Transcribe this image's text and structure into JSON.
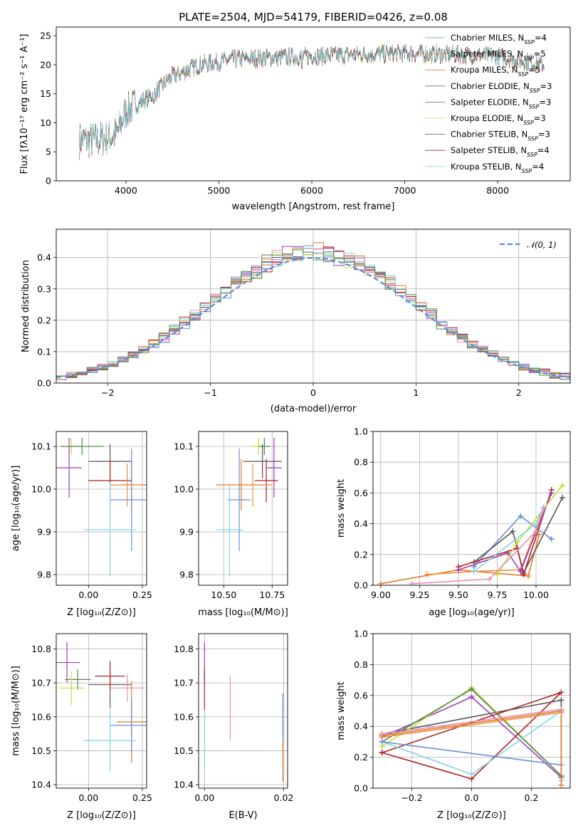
{
  "figure_title": "PLATE=2504, MJD=54179, FIBERID=0426, z=0.08",
  "colors": {
    "Chabrier MILES": "#6a8fd8",
    "Salpeter MILES": "#f28c3a",
    "Kroupa MILES": "#e07b28",
    "Chabrier ELODIE": "#4f8a4f",
    "Salpeter ELODIE": "#9b3fb5",
    "Kroupa ELODIE": "#c6d93a",
    "Chabrier STELIB": "#555555",
    "Salpeter STELIB": "#b22222",
    "Kroupa STELIB": "#7fd6e3",
    "pink": "#e890b8",
    "gaussian": "#5b8dd6"
  },
  "chart_data": [
    {
      "id": "spectrum",
      "type": "line",
      "title": "PLATE=2504, MJD=54179, FIBERID=0426, z=0.08",
      "xlabel": "wavelength [Angstrom, rest frame]",
      "ylabel": "Flux [f_λ 10^-17 erg cm^-2 s^-1 A^-1]",
      "xlim": [
        3250,
        8780
      ],
      "ylim": [
        0,
        26.5
      ],
      "xticks": [
        4000,
        5000,
        6000,
        7000,
        8000
      ],
      "yticks": [
        0,
        5,
        10,
        15,
        20,
        25
      ],
      "grid": false,
      "legend_position": "right",
      "series": [
        {
          "name": "Chabrier MILES",
          "nssp": "4"
        },
        {
          "name": "Salpeter MILES",
          "nssp": "5"
        },
        {
          "name": "Kroupa MILES",
          "nssp": "5"
        },
        {
          "name": "Chabrier ELODIE",
          "nssp": "3"
        },
        {
          "name": "Salpeter ELODIE",
          "nssp": "3"
        },
        {
          "name": "Kroupa ELODIE",
          "nssp": "3"
        },
        {
          "name": "Chabrier STELIB",
          "nssp": "3"
        },
        {
          "name": "Salpeter STELIB",
          "nssp": "4"
        },
        {
          "name": "Kroupa STELIB",
          "nssp": "4"
        }
      ],
      "continuum_anchors": [
        [
          3500,
          7
        ],
        [
          3700,
          7
        ],
        [
          3900,
          8
        ],
        [
          4000,
          12
        ],
        [
          4300,
          15
        ],
        [
          4500,
          18
        ],
        [
          4800,
          20
        ],
        [
          5200,
          21
        ],
        [
          6000,
          21.5
        ],
        [
          7000,
          22
        ],
        [
          8000,
          21.5
        ],
        [
          8500,
          20
        ]
      ]
    },
    {
      "id": "residuals",
      "type": "line",
      "xlabel": "(data-model)/error",
      "ylabel": "Normed distribution",
      "xlim": [
        -2.5,
        2.5
      ],
      "ylim": [
        0,
        0.49
      ],
      "xticks": [
        -2,
        -1,
        0,
        1,
        2
      ],
      "yticks": [
        0.0,
        0.1,
        0.2,
        0.3,
        0.4
      ],
      "grid": true,
      "legend": "𝒩(0, 1)",
      "legend_position": "upper right"
    },
    {
      "id": "age_vs_Z",
      "type": "scatter",
      "xlabel": "Z [log10(Z/Z⊙)]",
      "ylabel": "age [log10(age/yr)]",
      "xlim": [
        -0.15,
        0.27
      ],
      "ylim": [
        9.775,
        10.135
      ],
      "xticks": [
        0.0,
        0.25
      ],
      "yticks": [
        9.8,
        9.9,
        10.0,
        10.1
      ],
      "grid": true,
      "points": [
        {
          "series": "Kroupa ELODIE",
          "x": -0.08,
          "xerr": 0.05,
          "y": 10.1,
          "yerr": 0.02
        },
        {
          "series": "Chabrier ELODIE",
          "x": -0.03,
          "xerr": 0.1,
          "y": 10.1,
          "yerr": 0.02
        },
        {
          "series": "Salpeter ELODIE",
          "x": -0.09,
          "xerr": 0.06,
          "y": 10.05,
          "yerr": 0.07
        },
        {
          "series": "Chabrier STELIB",
          "x": 0.1,
          "xerr": 0.1,
          "y": 10.065,
          "yerr": 0.04
        },
        {
          "series": "Salpeter STELIB",
          "x": 0.1,
          "xerr": 0.1,
          "y": 10.02,
          "yerr": 0.05
        },
        {
          "series": "Kroupa MILES",
          "x": 0.2,
          "xerr": 0.07,
          "y": 10.01,
          "yerr": 0.06
        },
        {
          "series": "Salpeter MILES",
          "x": 0.18,
          "xerr": 0.08,
          "y": 10.01,
          "yerr": 0.05
        },
        {
          "series": "Chabrier MILES",
          "x": 0.2,
          "xerr": 0.1,
          "y": 9.975,
          "yerr": 0.12
        },
        {
          "series": "Kroupa STELIB",
          "x": 0.1,
          "xerr": 0.12,
          "y": 9.905,
          "yerr": 0.11
        }
      ]
    },
    {
      "id": "age_vs_mass",
      "type": "scatter",
      "xlabel": "mass [log10(M/M⊙)]",
      "ylabel": "",
      "xlim": [
        10.37,
        10.83
      ],
      "ylim": [
        9.775,
        10.135
      ],
      "xticks": [
        10.5,
        10.75
      ],
      "yticks": [
        9.8,
        9.9,
        10.0,
        10.1
      ],
      "grid": true,
      "points": [
        {
          "series": "Kroupa ELODIE",
          "x": 10.68,
          "xerr": 0.04,
          "y": 10.1,
          "yerr": 0.02
        },
        {
          "series": "Chabrier ELODIE",
          "x": 10.71,
          "xerr": 0.03,
          "y": 10.1,
          "yerr": 0.02
        },
        {
          "series": "Salpeter ELODIE",
          "x": 10.76,
          "xerr": 0.04,
          "y": 10.05,
          "yerr": 0.07
        },
        {
          "series": "Chabrier STELIB",
          "x": 10.7,
          "xerr": 0.1,
          "y": 10.065,
          "yerr": 0.04
        },
        {
          "series": "Salpeter STELIB",
          "x": 10.72,
          "xerr": 0.06,
          "y": 10.02,
          "yerr": 0.05
        },
        {
          "series": "Kroupa MILES",
          "x": 10.59,
          "xerr": 0.13,
          "y": 10.01,
          "yerr": 0.06
        },
        {
          "series": "Salpeter MILES",
          "x": 10.65,
          "xerr": 0.1,
          "y": 10.01,
          "yerr": 0.05
        },
        {
          "series": "Chabrier MILES",
          "x": 10.58,
          "xerr": 0.06,
          "y": 9.975,
          "yerr": 0.12
        },
        {
          "series": "Kroupa STELIB",
          "x": 10.53,
          "xerr": 0.07,
          "y": 9.905,
          "yerr": 0.11
        }
      ]
    },
    {
      "id": "weight_vs_age",
      "type": "line",
      "xlabel": "age [log10(age/yr)]",
      "ylabel": "mass weight",
      "xlim": [
        8.95,
        10.22
      ],
      "ylim": [
        0,
        1.0
      ],
      "xticks": [
        9.0,
        9.25,
        9.5,
        9.75,
        10.0
      ],
      "yticks": [
        0.0,
        0.2,
        0.4,
        0.6,
        0.8,
        1.0
      ],
      "grid": true,
      "series": [
        {
          "name": "Kroupa MILES",
          "x": [
            9.0,
            9.5,
            9.95,
            10.02
          ],
          "y": [
            0.01,
            0.1,
            0.06,
            0.33
          ]
        },
        {
          "name": "Salpeter MILES",
          "x": [
            9.3,
            9.6,
            9.9,
            10.05
          ],
          "y": [
            0.07,
            0.09,
            0.1,
            0.5
          ]
        },
        {
          "name": "Chabrier MILES",
          "x": [
            9.6,
            9.9,
            10.1
          ],
          "y": [
            0.12,
            0.45,
            0.3
          ]
        },
        {
          "name": "Chabrier STELIB",
          "x": [
            9.6,
            9.85,
            9.92,
            10.17
          ],
          "y": [
            0.15,
            0.35,
            0.08,
            0.57
          ]
        },
        {
          "name": "Salpeter STELIB",
          "x": [
            9.5,
            9.88,
            9.92,
            10.1
          ],
          "y": [
            0.12,
            0.24,
            0.07,
            0.62
          ]
        },
        {
          "name": "Salpeter ELODIE",
          "x": [
            9.5,
            9.82,
            9.9,
            10.1
          ],
          "y": [
            0.1,
            0.21,
            0.09,
            0.6
          ]
        },
        {
          "name": "Kroupa ELODIE",
          "x": [
            9.75,
            9.88,
            10.17
          ],
          "y": [
            0.07,
            0.28,
            0.65
          ]
        },
        {
          "name": "Kroupa STELIB",
          "x": [
            9.6,
            10.0,
            10.05
          ],
          "y": [
            0.09,
            0.4,
            0.51
          ]
        },
        {
          "name": "pink",
          "x": [
            9.2,
            9.7,
            10.0,
            10.05
          ],
          "y": [
            0.01,
            0.04,
            0.35,
            0.5
          ]
        }
      ]
    },
    {
      "id": "mass_vs_Z",
      "type": "scatter",
      "xlabel": "Z [log10(Z/Z⊙)]",
      "ylabel": "mass [log10(M/M⊙)]",
      "xlim": [
        -0.15,
        0.27
      ],
      "ylim": [
        10.39,
        10.845
      ],
      "xticks": [
        0.0,
        0.25
      ],
      "yticks": [
        10.4,
        10.5,
        10.6,
        10.7,
        10.8
      ],
      "grid": true,
      "points": [
        {
          "series": "Salpeter ELODIE",
          "x": -0.1,
          "xerr": 0.06,
          "y": 10.76,
          "yerr": 0.06
        },
        {
          "series": "Chabrier ELODIE",
          "x": -0.05,
          "xerr": 0.06,
          "y": 10.71,
          "yerr": 0.03
        },
        {
          "series": "Kroupa ELODIE",
          "x": -0.08,
          "xerr": 0.06,
          "y": 10.685,
          "yerr": 0.05
        },
        {
          "series": "Chabrier STELIB",
          "x": 0.1,
          "xerr": 0.1,
          "y": 10.695,
          "yerr": 0.07
        },
        {
          "series": "Salpeter STELIB",
          "x": 0.1,
          "xerr": 0.07,
          "y": 10.72,
          "yerr": 0.04
        },
        {
          "series": "pink",
          "x": 0.18,
          "xerr": 0.08,
          "y": 10.685,
          "yerr": 0.04
        },
        {
          "series": "Kroupa MILES",
          "x": 0.2,
          "xerr": 0.07,
          "y": 10.585,
          "yerr": 0.12
        },
        {
          "series": "Chabrier MILES",
          "x": 0.2,
          "xerr": 0.1,
          "y": 10.575,
          "yerr": 0.08
        },
        {
          "series": "Kroupa STELIB",
          "x": 0.1,
          "xerr": 0.12,
          "y": 10.53,
          "yerr": 0.09
        }
      ]
    },
    {
      "id": "mass_vs_ebv",
      "type": "scatter",
      "xlabel": "E(B-V)",
      "ylabel": "",
      "xlim": [
        -0.0015,
        0.021
      ],
      "ylim": [
        10.39,
        10.845
      ],
      "xticks": [
        0.0,
        0.02
      ],
      "yticks": [
        10.4,
        10.5,
        10.6,
        10.7,
        10.8
      ],
      "grid": true,
      "points": [
        {
          "series": "Salpeter ELODIE",
          "x": 0.0,
          "y": 10.76,
          "yerr": 0.06
        },
        {
          "series": "Salpeter STELIB",
          "x": 0.0,
          "y": 10.68,
          "yerr": 0.06
        },
        {
          "series": "Kroupa STELIB",
          "x": 0.0,
          "y": 10.53,
          "yerr": 0.08
        },
        {
          "series": "pink",
          "x": 0.0065,
          "y": 10.625,
          "yerr": 0.095
        },
        {
          "series": "Chabrier MILES",
          "x": 0.0198,
          "y": 10.6,
          "yerr": 0.07
        },
        {
          "series": "Kroupa MILES",
          "x": 0.0198,
          "y": 10.47,
          "yerr": 0.06
        }
      ]
    },
    {
      "id": "weight_vs_Z",
      "type": "line",
      "xlabel": "Z [log10(Z/Z⊙)]",
      "ylabel": "mass weight",
      "xlim": [
        -0.33,
        0.33
      ],
      "ylim": [
        0,
        1.0
      ],
      "xticks": [
        -0.2,
        0.0,
        0.2
      ],
      "yticks": [
        0.0,
        0.2,
        0.4,
        0.6,
        0.8,
        1.0
      ],
      "grid": true,
      "series": [
        {
          "name": "Chabrier STELIB",
          "x": [
            -0.3,
            0.3,
            0.3
          ],
          "y": [
            0.35,
            0.57,
            0.08
          ]
        },
        {
          "name": "Salpeter ELODIE",
          "x": [
            -0.3,
            0.0,
            0.3
          ],
          "y": [
            0.33,
            0.59,
            0.07
          ]
        },
        {
          "name": "Kroupa ELODIE",
          "x": [
            -0.3,
            0.0,
            0.3
          ],
          "y": [
            0.27,
            0.65,
            0.08
          ]
        },
        {
          "name": "Chabrier ELODIE",
          "x": [
            -0.3,
            0.0,
            0.3
          ],
          "y": [
            0.3,
            0.64,
            0.08
          ]
        },
        {
          "name": "Salpeter STELIB",
          "x": [
            -0.3,
            0.0,
            0.3,
            -0.3
          ],
          "y": [
            0.23,
            0.06,
            0.62,
            0.23
          ]
        },
        {
          "name": "Kroupa STELIB",
          "x": [
            -0.3,
            0.0,
            0.3,
            0.3
          ],
          "y": [
            0.3,
            0.09,
            0.5,
            0.05
          ]
        },
        {
          "name": "Chabrier MILES",
          "x": [
            -0.3,
            0.3
          ],
          "y": [
            0.3,
            0.15
          ]
        },
        {
          "name": "Kroupa MILES",
          "x": [
            -0.3,
            0.3,
            0.3
          ],
          "y": [
            0.34,
            0.5,
            0.02
          ]
        },
        {
          "name": "Salpeter MILES",
          "x": [
            -0.3,
            0.3
          ],
          "y": [
            0.33,
            0.49
          ]
        },
        {
          "name": "pink",
          "x": [
            -0.3,
            0.3
          ],
          "y": [
            0.35,
            0.51
          ]
        }
      ]
    }
  ]
}
